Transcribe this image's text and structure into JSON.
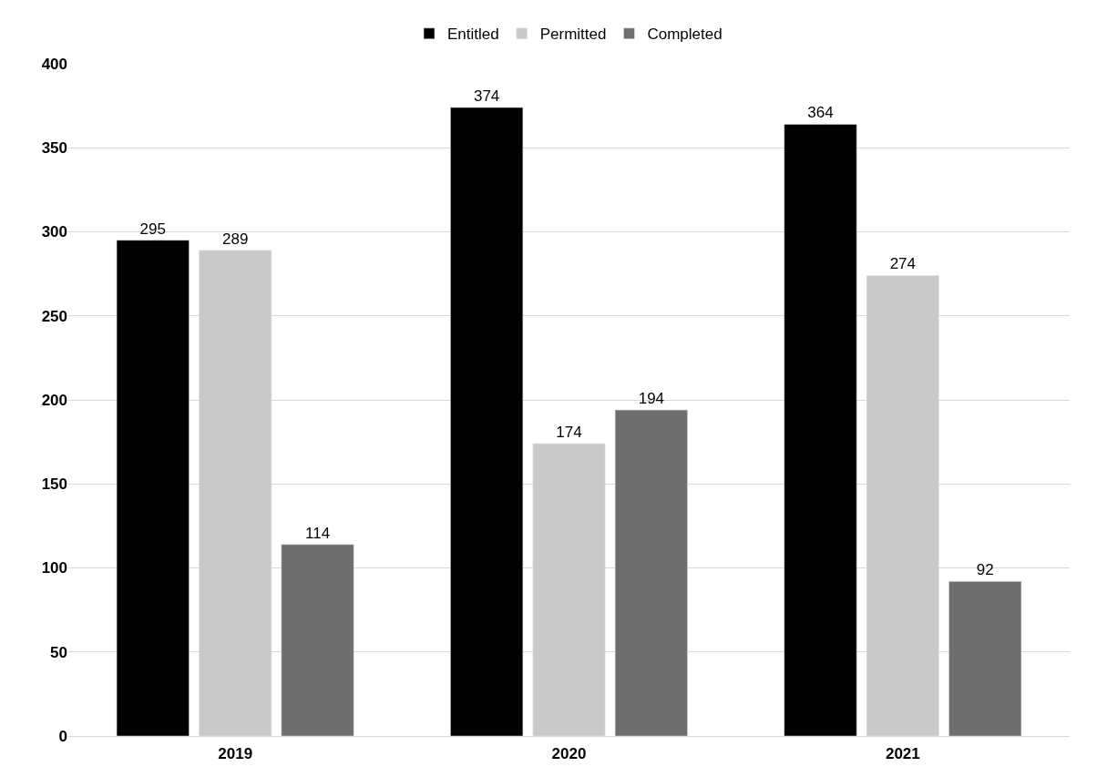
{
  "chart_data": {
    "type": "bar",
    "categories": [
      "2019",
      "2020",
      "2021"
    ],
    "series": [
      {
        "name": "Entitled",
        "color": "#000000",
        "values": [
          295,
          374,
          364
        ]
      },
      {
        "name": "Permitted",
        "color": "#c9c9c9",
        "values": [
          289,
          174,
          274
        ]
      },
      {
        "name": "Completed",
        "color": "#6e6e6e",
        "values": [
          114,
          194,
          92
        ]
      }
    ],
    "ylim": [
      0,
      400
    ],
    "yticks": [
      0,
      50,
      100,
      150,
      200,
      250,
      300,
      350,
      400
    ],
    "grid": "y",
    "legend": "top",
    "data_labels": true
  }
}
